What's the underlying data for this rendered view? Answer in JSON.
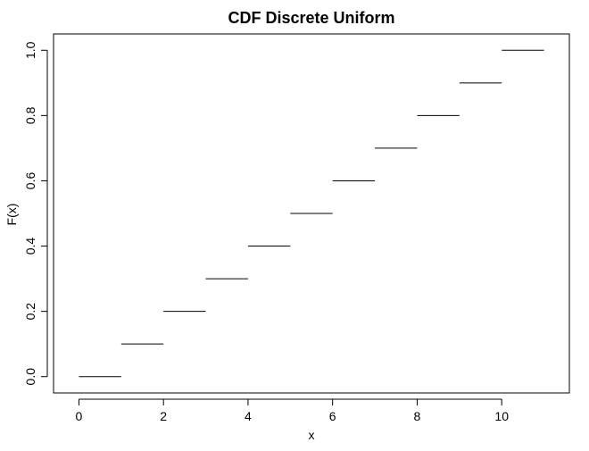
{
  "chart_data": {
    "type": "line",
    "title": "CDF Discrete Uniform",
    "xlabel": "x",
    "ylabel": "F(x)",
    "xlim": [
      -0.6,
      11.6
    ],
    "ylim": [
      -0.05,
      1.05
    ],
    "xticks": [
      0,
      2,
      4,
      6,
      8,
      10
    ],
    "yticks": [
      0.0,
      0.2,
      0.4,
      0.6,
      0.8,
      1.0
    ],
    "x_tick_labels": [
      "0",
      "2",
      "4",
      "6",
      "8",
      "10"
    ],
    "y_tick_labels": [
      "0.0",
      "0.2",
      "0.4",
      "0.6",
      "0.8",
      "1.0"
    ],
    "grid": false,
    "series": [
      {
        "segments": [
          {
            "x_start": 0,
            "x_end": 1,
            "y": 0.0
          },
          {
            "x_start": 1,
            "x_end": 2,
            "y": 0.1
          },
          {
            "x_start": 2,
            "x_end": 3,
            "y": 0.2
          },
          {
            "x_start": 3,
            "x_end": 4,
            "y": 0.3
          },
          {
            "x_start": 4,
            "x_end": 5,
            "y": 0.4
          },
          {
            "x_start": 5,
            "x_end": 6,
            "y": 0.5
          },
          {
            "x_start": 6,
            "x_end": 7,
            "y": 0.6
          },
          {
            "x_start": 7,
            "x_end": 8,
            "y": 0.7
          },
          {
            "x_start": 8,
            "x_end": 9,
            "y": 0.8
          },
          {
            "x_start": 9,
            "x_end": 10,
            "y": 0.9
          },
          {
            "x_start": 10,
            "x_end": 11,
            "y": 1.0
          }
        ],
        "color": "#000000"
      }
    ]
  }
}
